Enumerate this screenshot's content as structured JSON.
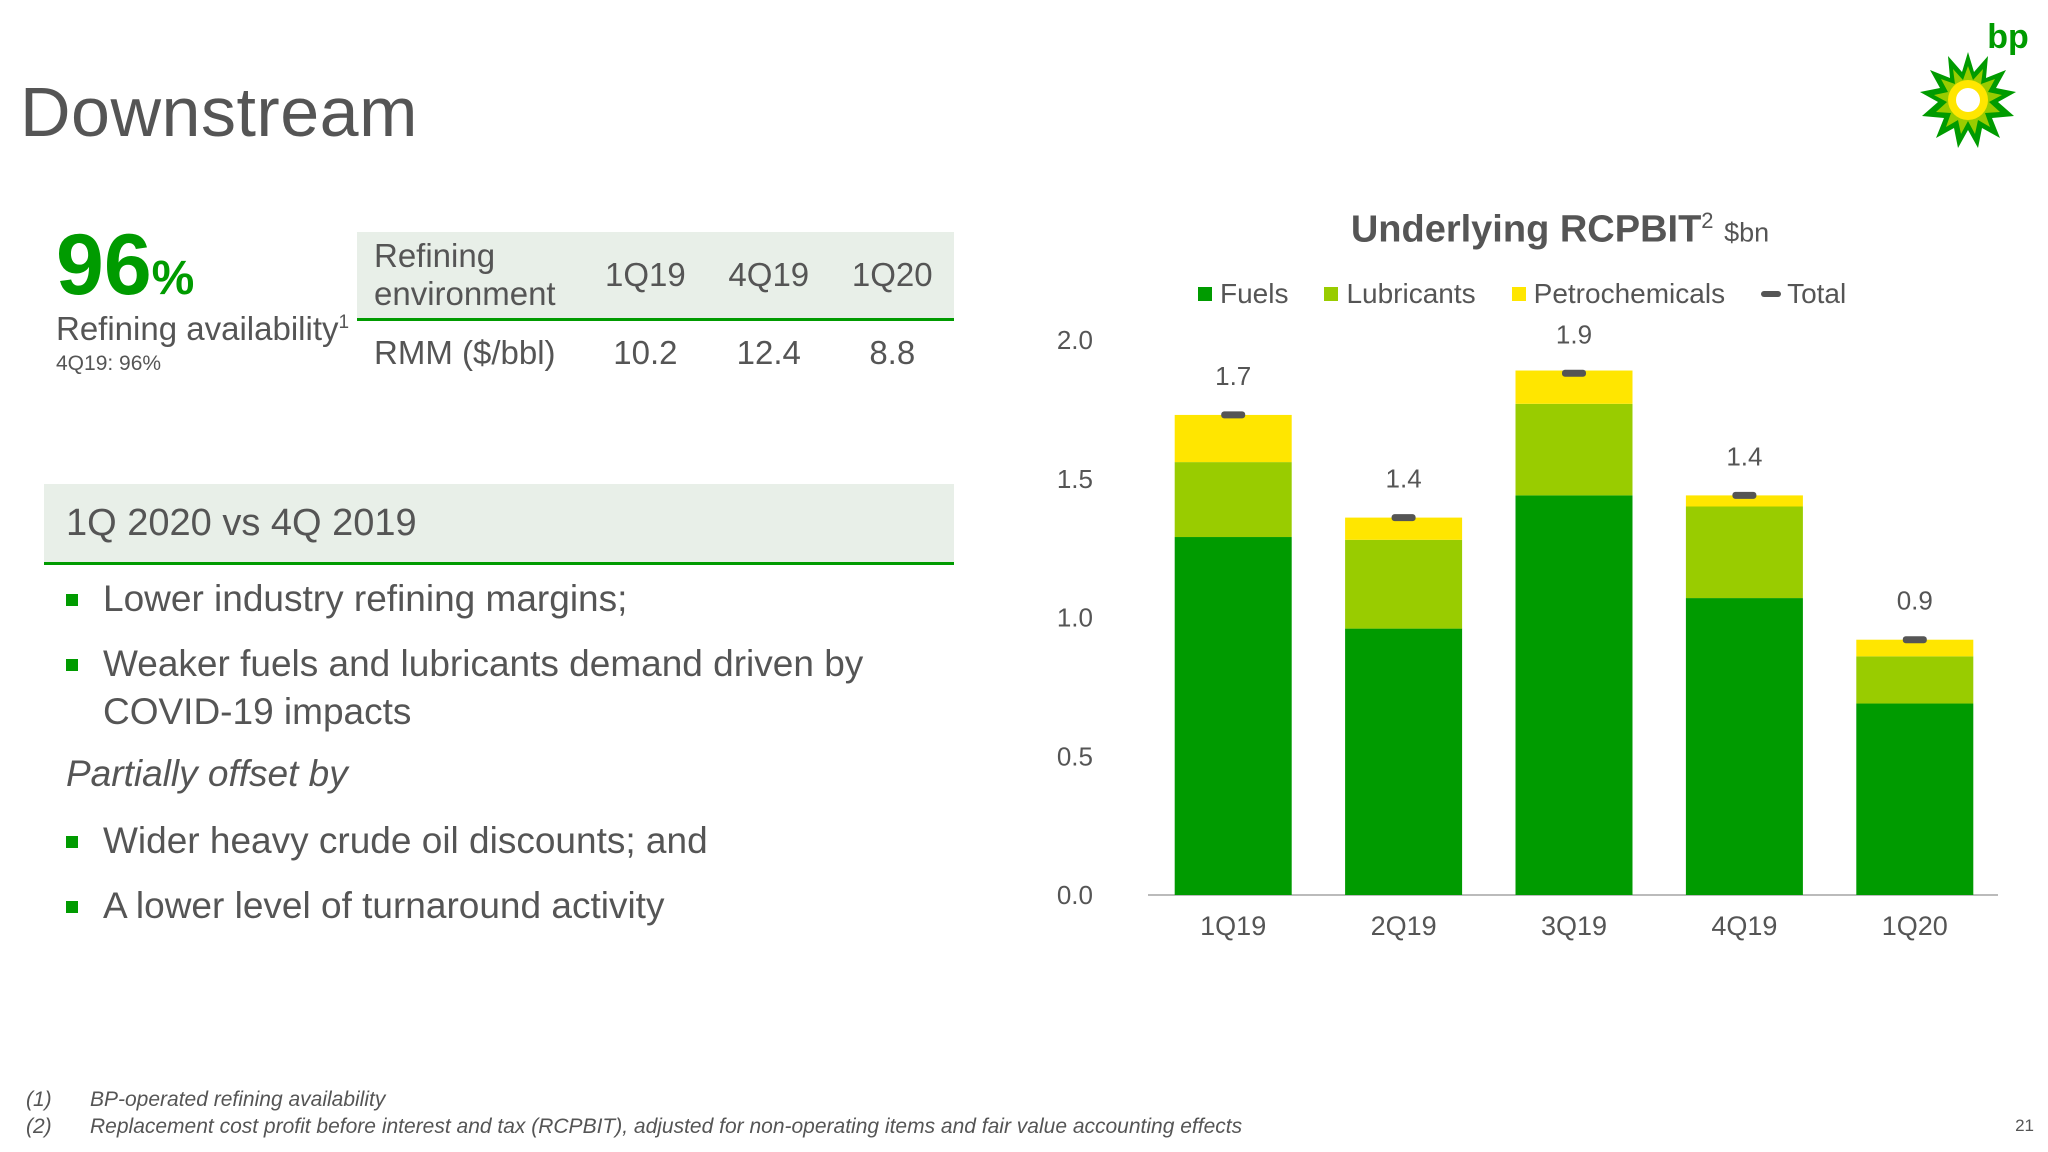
{
  "page": {
    "title": "Downstream",
    "page_number": "21",
    "logo_text": "bp"
  },
  "kpi": {
    "value": "96",
    "unit": "%",
    "label": "Refining availability",
    "label_sup": "1",
    "sub": "4Q19: 96%"
  },
  "refining_table": {
    "header": [
      "Refining environment",
      "1Q19",
      "4Q19",
      "1Q20"
    ],
    "rows": [
      [
        "RMM ($/bbl)",
        "10.2",
        "12.4",
        "8.8"
      ]
    ]
  },
  "comparison": {
    "header": "1Q 2020 vs 4Q 2019",
    "bullets_before": [
      "Lower industry refining margins;",
      "Weaker fuels and lubricants demand driven by COVID-19 impacts"
    ],
    "offset_label": "Partially offset by",
    "bullets_after": [
      "Wider heavy crude oil discounts; and",
      "A lower level of turnaround activity"
    ]
  },
  "footnotes": [
    {
      "num": "(1)",
      "text": "BP-operated refining availability"
    },
    {
      "num": "(2)",
      "text": "Replacement cost profit before interest and tax (RCPBIT), adjusted for non-operating items and fair value accounting effects"
    }
  ],
  "colors": {
    "fuels": "#009b00",
    "lubricants": "#99cc00",
    "petrochemicals": "#ffe600",
    "total_marker": "#555555",
    "accent": "#009b00"
  },
  "chart_data": {
    "type": "bar",
    "stacked": true,
    "title": "Underlying RCPBIT",
    "title_sup": "2",
    "unit": "$bn",
    "categories": [
      "1Q19",
      "2Q19",
      "3Q19",
      "4Q19",
      "1Q20"
    ],
    "series": [
      {
        "name": "Fuels",
        "values": [
          1.29,
          0.96,
          1.44,
          1.07,
          0.69
        ]
      },
      {
        "name": "Lubricants",
        "values": [
          0.27,
          0.32,
          0.33,
          0.33,
          0.17
        ]
      },
      {
        "name": "Petrochemicals",
        "values": [
          0.17,
          0.08,
          0.12,
          0.04,
          0.06
        ]
      }
    ],
    "total": {
      "name": "Total",
      "values": [
        1.73,
        1.36,
        1.88,
        1.44,
        0.92
      ],
      "labels": [
        "1.7",
        "1.4",
        "1.9",
        "1.4",
        "0.9"
      ]
    },
    "ylim": [
      0,
      2.0
    ],
    "yticks": [
      "0.0",
      "0.5",
      "1.0",
      "1.5",
      "2.0"
    ],
    "grid": false,
    "legend": "top"
  }
}
